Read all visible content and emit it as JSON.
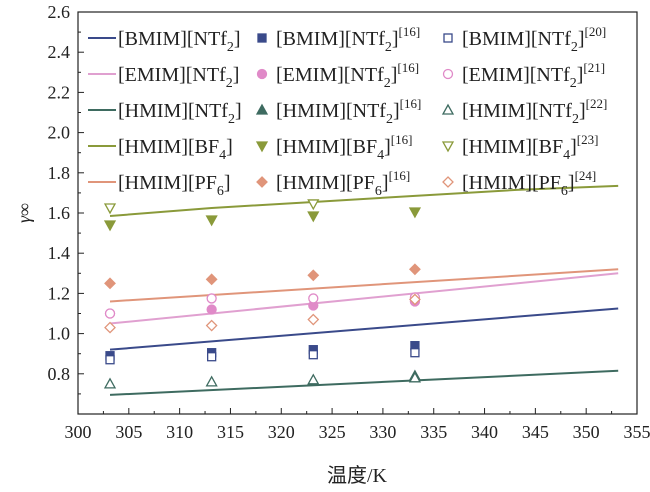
{
  "chart_data": {
    "type": "scatter",
    "xlabel": "温度/K",
    "ylabel": "γ∞",
    "xlim": [
      300,
      355
    ],
    "ylim": [
      0.6,
      2.6
    ],
    "xticks": [
      "300",
      "305",
      "310",
      "315",
      "320",
      "325",
      "330",
      "335",
      "340",
      "345",
      "350",
      "355"
    ],
    "yticks": [
      "0.8",
      "1.0",
      "1.2",
      "1.4",
      "1.6",
      "1.8",
      "2.0",
      "2.2",
      "2.4",
      "2.6"
    ],
    "series": [
      {
        "name": "[BMIM][NTf2]",
        "kind": "line",
        "color": "#3a4a8a",
        "x": [
          303.15,
          353.15
        ],
        "y": [
          0.92,
          1.125
        ]
      },
      {
        "name": "[EMIM][NTf2]",
        "kind": "line",
        "color": "#e0a0d0",
        "x": [
          303.15,
          353.15
        ],
        "y": [
          1.05,
          1.3
        ]
      },
      {
        "name": "[HMIM][NTf2]",
        "kind": "line",
        "color": "#3e6b60",
        "x": [
          303.15,
          353.15
        ],
        "y": [
          0.695,
          0.815
        ]
      },
      {
        "name": "[HMIM][BF4]",
        "kind": "line",
        "color": "#8a9a3a",
        "x": [
          303.15,
          313.15,
          323.15,
          333.15,
          343.15,
          353.15
        ],
        "y": [
          1.585,
          1.625,
          1.655,
          1.685,
          1.715,
          1.735
        ]
      },
      {
        "name": "[HMIM][PF6]",
        "kind": "line",
        "color": "#e0957a",
        "x": [
          303.15,
          353.15
        ],
        "y": [
          1.16,
          1.32
        ]
      },
      {
        "name": "[BMIM][NTf2][16]",
        "kind": "points",
        "marker": "square",
        "filled": true,
        "color": "#3a4a8a",
        "x": [
          303.15,
          313.15,
          323.15,
          333.15
        ],
        "y": [
          0.89,
          0.905,
          0.92,
          0.94
        ]
      },
      {
        "name": "[EMIM][NTf2][16]",
        "kind": "points",
        "marker": "circle",
        "filled": true,
        "color": "#e08ac8",
        "x": [
          303.15,
          313.15,
          323.15,
          333.15
        ],
        "y": [
          1.1,
          1.12,
          1.14,
          1.16
        ]
      },
      {
        "name": "[HMIM][NTf2][16]",
        "kind": "points",
        "marker": "triangle-up",
        "filled": true,
        "color": "#3e6b60",
        "x": [
          333.15
        ],
        "y": [
          0.79
        ]
      },
      {
        "name": "[HMIM][BF4][16]",
        "kind": "points",
        "marker": "triangle-down",
        "filled": true,
        "color": "#8a9a3a",
        "x": [
          303.15,
          313.15,
          323.15,
          333.15
        ],
        "y": [
          1.54,
          1.565,
          1.585,
          1.605
        ]
      },
      {
        "name": "[HMIM][PF6][16]",
        "kind": "points",
        "marker": "diamond",
        "filled": true,
        "color": "#e0957a",
        "x": [
          303.15,
          313.15,
          323.15,
          333.15
        ],
        "y": [
          1.25,
          1.27,
          1.29,
          1.32
        ]
      },
      {
        "name": "[BMIM][NTf2][20]",
        "kind": "points",
        "marker": "square",
        "filled": false,
        "color": "#3a4a8a",
        "x": [
          303.15,
          313.15,
          323.15,
          333.15
        ],
        "y": [
          0.87,
          0.885,
          0.895,
          0.905
        ]
      },
      {
        "name": "[EMIM][NTf2][21]",
        "kind": "points",
        "marker": "circle",
        "filled": false,
        "color": "#e08ac8",
        "x": [
          303.15,
          313.15,
          323.15,
          333.15
        ],
        "y": [
          1.1,
          1.175,
          1.175,
          1.18
        ]
      },
      {
        "name": "[HMIM][NTf2][22]",
        "kind": "points",
        "marker": "triangle-up",
        "filled": false,
        "color": "#3e6b60",
        "x": [
          303.15,
          313.15,
          323.15,
          333.15
        ],
        "y": [
          0.75,
          0.76,
          0.77,
          0.78
        ]
      },
      {
        "name": "[HMIM][BF4][23]",
        "kind": "points",
        "marker": "triangle-down",
        "filled": false,
        "color": "#8a9a3a",
        "x": [
          303.15,
          323.15
        ],
        "y": [
          1.625,
          1.645
        ]
      },
      {
        "name": "[HMIM][PF6][24]",
        "kind": "points",
        "marker": "diamond",
        "filled": false,
        "color": "#e0957a",
        "x": [
          303.15,
          313.15,
          323.15,
          333.15
        ],
        "y": [
          1.03,
          1.04,
          1.07,
          1.17
        ]
      }
    ],
    "legend": {
      "placement": "top-left",
      "columns": 3,
      "entries": [
        {
          "series": 0,
          "base": "[BMIM][NTf",
          "sub": "2",
          "after": "]",
          "sup": ""
        },
        {
          "series": 5,
          "base": "[BMIM][NTf",
          "sub": "2",
          "after": "]",
          "sup": "[16]"
        },
        {
          "series": 10,
          "base": "[BMIM][NTf",
          "sub": "2",
          "after": "]",
          "sup": "[20]"
        },
        {
          "series": 1,
          "base": "[EMIM][NTf",
          "sub": "2",
          "after": "]",
          "sup": ""
        },
        {
          "series": 6,
          "base": "[EMIM][NTf",
          "sub": "2",
          "after": "]",
          "sup": "[16]"
        },
        {
          "series": 11,
          "base": "[EMIM][NTf",
          "sub": "2",
          "after": "]",
          "sup": "[21]"
        },
        {
          "series": 2,
          "base": "[HMIM][NTf",
          "sub": "2",
          "after": "]",
          "sup": ""
        },
        {
          "series": 7,
          "base": "[HMIM][NTf",
          "sub": "2",
          "after": "]",
          "sup": "[16]"
        },
        {
          "series": 12,
          "base": "[HMIM][NTf",
          "sub": "2",
          "after": "]",
          "sup": "[22]"
        },
        {
          "series": 3,
          "base": "[HMIM][BF",
          "sub": "4",
          "after": "]",
          "sup": ""
        },
        {
          "series": 8,
          "base": "[HMIM][BF",
          "sub": "4",
          "after": "]",
          "sup": "[16]"
        },
        {
          "series": 13,
          "base": "[HMIM][BF",
          "sub": "4",
          "after": "]",
          "sup": "[23]"
        },
        {
          "series": 4,
          "base": "[HMIM][PF",
          "sub": "6",
          "after": "]",
          "sup": ""
        },
        {
          "series": 9,
          "base": "[HMIM][PF",
          "sub": "6",
          "after": "]",
          "sup": "[16]"
        },
        {
          "series": 14,
          "base": "[HMIM][PF",
          "sub": "6",
          "after": "]",
          "sup": "[24]"
        }
      ]
    },
    "grid": false
  }
}
